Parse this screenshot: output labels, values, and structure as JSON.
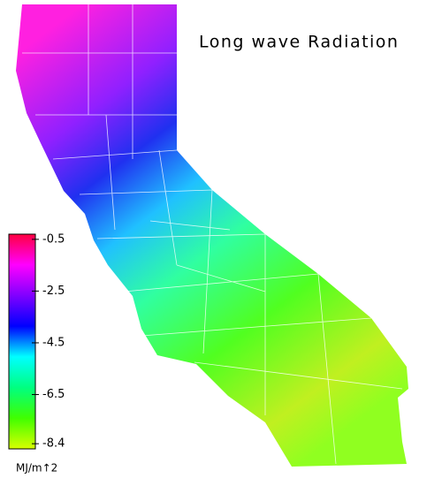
{
  "title": "Long wave Radiation",
  "colorbar": {
    "unit": "MJ/m↑2",
    "range": [
      -8.6,
      -0.3
    ],
    "ticks": [
      -0.5,
      -2.5,
      -4.5,
      -6.5,
      -8.4
    ],
    "colors": [
      "#d8ff00",
      "#40ff00",
      "#00ff80",
      "#00ffff",
      "#0000ff",
      "#8000ff",
      "#ff00ff",
      "#ff0040"
    ]
  }
}
